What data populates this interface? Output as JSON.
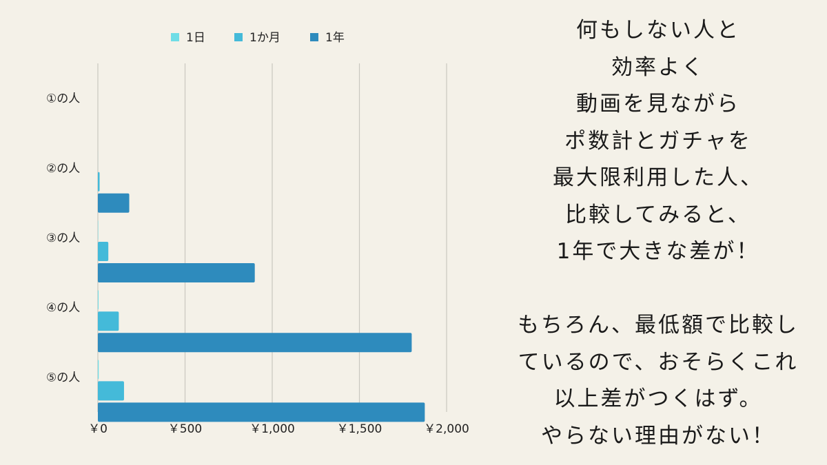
{
  "colors": {
    "background": "#f4f1e8",
    "grid": "#c9c7bf",
    "series_1day": "#6fdde6",
    "series_1month": "#44bad9",
    "series_1year": "#2e8bbd",
    "text": "#222222"
  },
  "chart_data": {
    "type": "bar",
    "orientation": "horizontal",
    "categories": [
      "①の人",
      "②の人",
      "③の人",
      "④の人",
      "⑤の人"
    ],
    "series": [
      {
        "name": "1日",
        "color": "#6fdde6",
        "values": [
          0,
          0.3,
          2,
          4,
          5
        ]
      },
      {
        "name": "1か月",
        "color": "#44bad9",
        "values": [
          0,
          10,
          60,
          120,
          150
        ]
      },
      {
        "name": "1年",
        "color": "#2e8bbd",
        "values": [
          0,
          180,
          900,
          1800,
          1875
        ]
      }
    ],
    "x_ticks": [
      "￥0",
      "￥500",
      "￥1,000",
      "￥1,500",
      "￥2,000"
    ],
    "xlim": [
      0,
      2000
    ],
    "grid": true,
    "legend_position": "top"
  },
  "message": {
    "block1": [
      "何もしない人と",
      "効率よく",
      "動画を見ながら",
      "ポ数計とガチャを",
      "最大限利用した人、",
      "比較してみると、",
      "1年で大きな差が！"
    ],
    "block2": [
      "もちろん、最低額で比較し",
      "ているので、おそらくこれ",
      "以上差がつくはず。",
      "やらない理由がない！"
    ]
  }
}
